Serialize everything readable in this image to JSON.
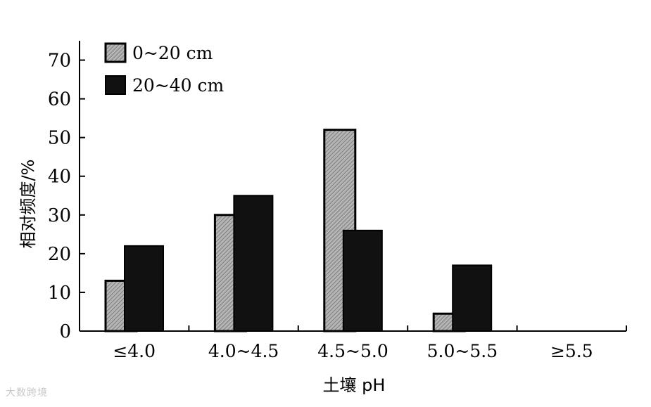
{
  "chart_data": {
    "type": "bar",
    "title": "",
    "xlabel": "土壤 pH",
    "ylabel": "相对频度/%",
    "categories": [
      "≤4.0",
      "4.0~4.5",
      "4.5~5.0",
      "5.0~5.5",
      "≥5.5"
    ],
    "ylim": [
      0,
      75
    ],
    "yticks": [
      0,
      10,
      20,
      30,
      40,
      50,
      60,
      70
    ],
    "series": [
      {
        "name": "0~20 cm",
        "values": [
          13,
          30,
          52,
          4.5,
          0
        ],
        "fill": "hatched-gray"
      },
      {
        "name": "20~40 cm",
        "values": [
          22,
          35,
          26,
          17,
          0
        ],
        "fill": "#111111"
      }
    ],
    "legend_position": "top-left",
    "grid": false
  },
  "watermark": "大数跨境"
}
